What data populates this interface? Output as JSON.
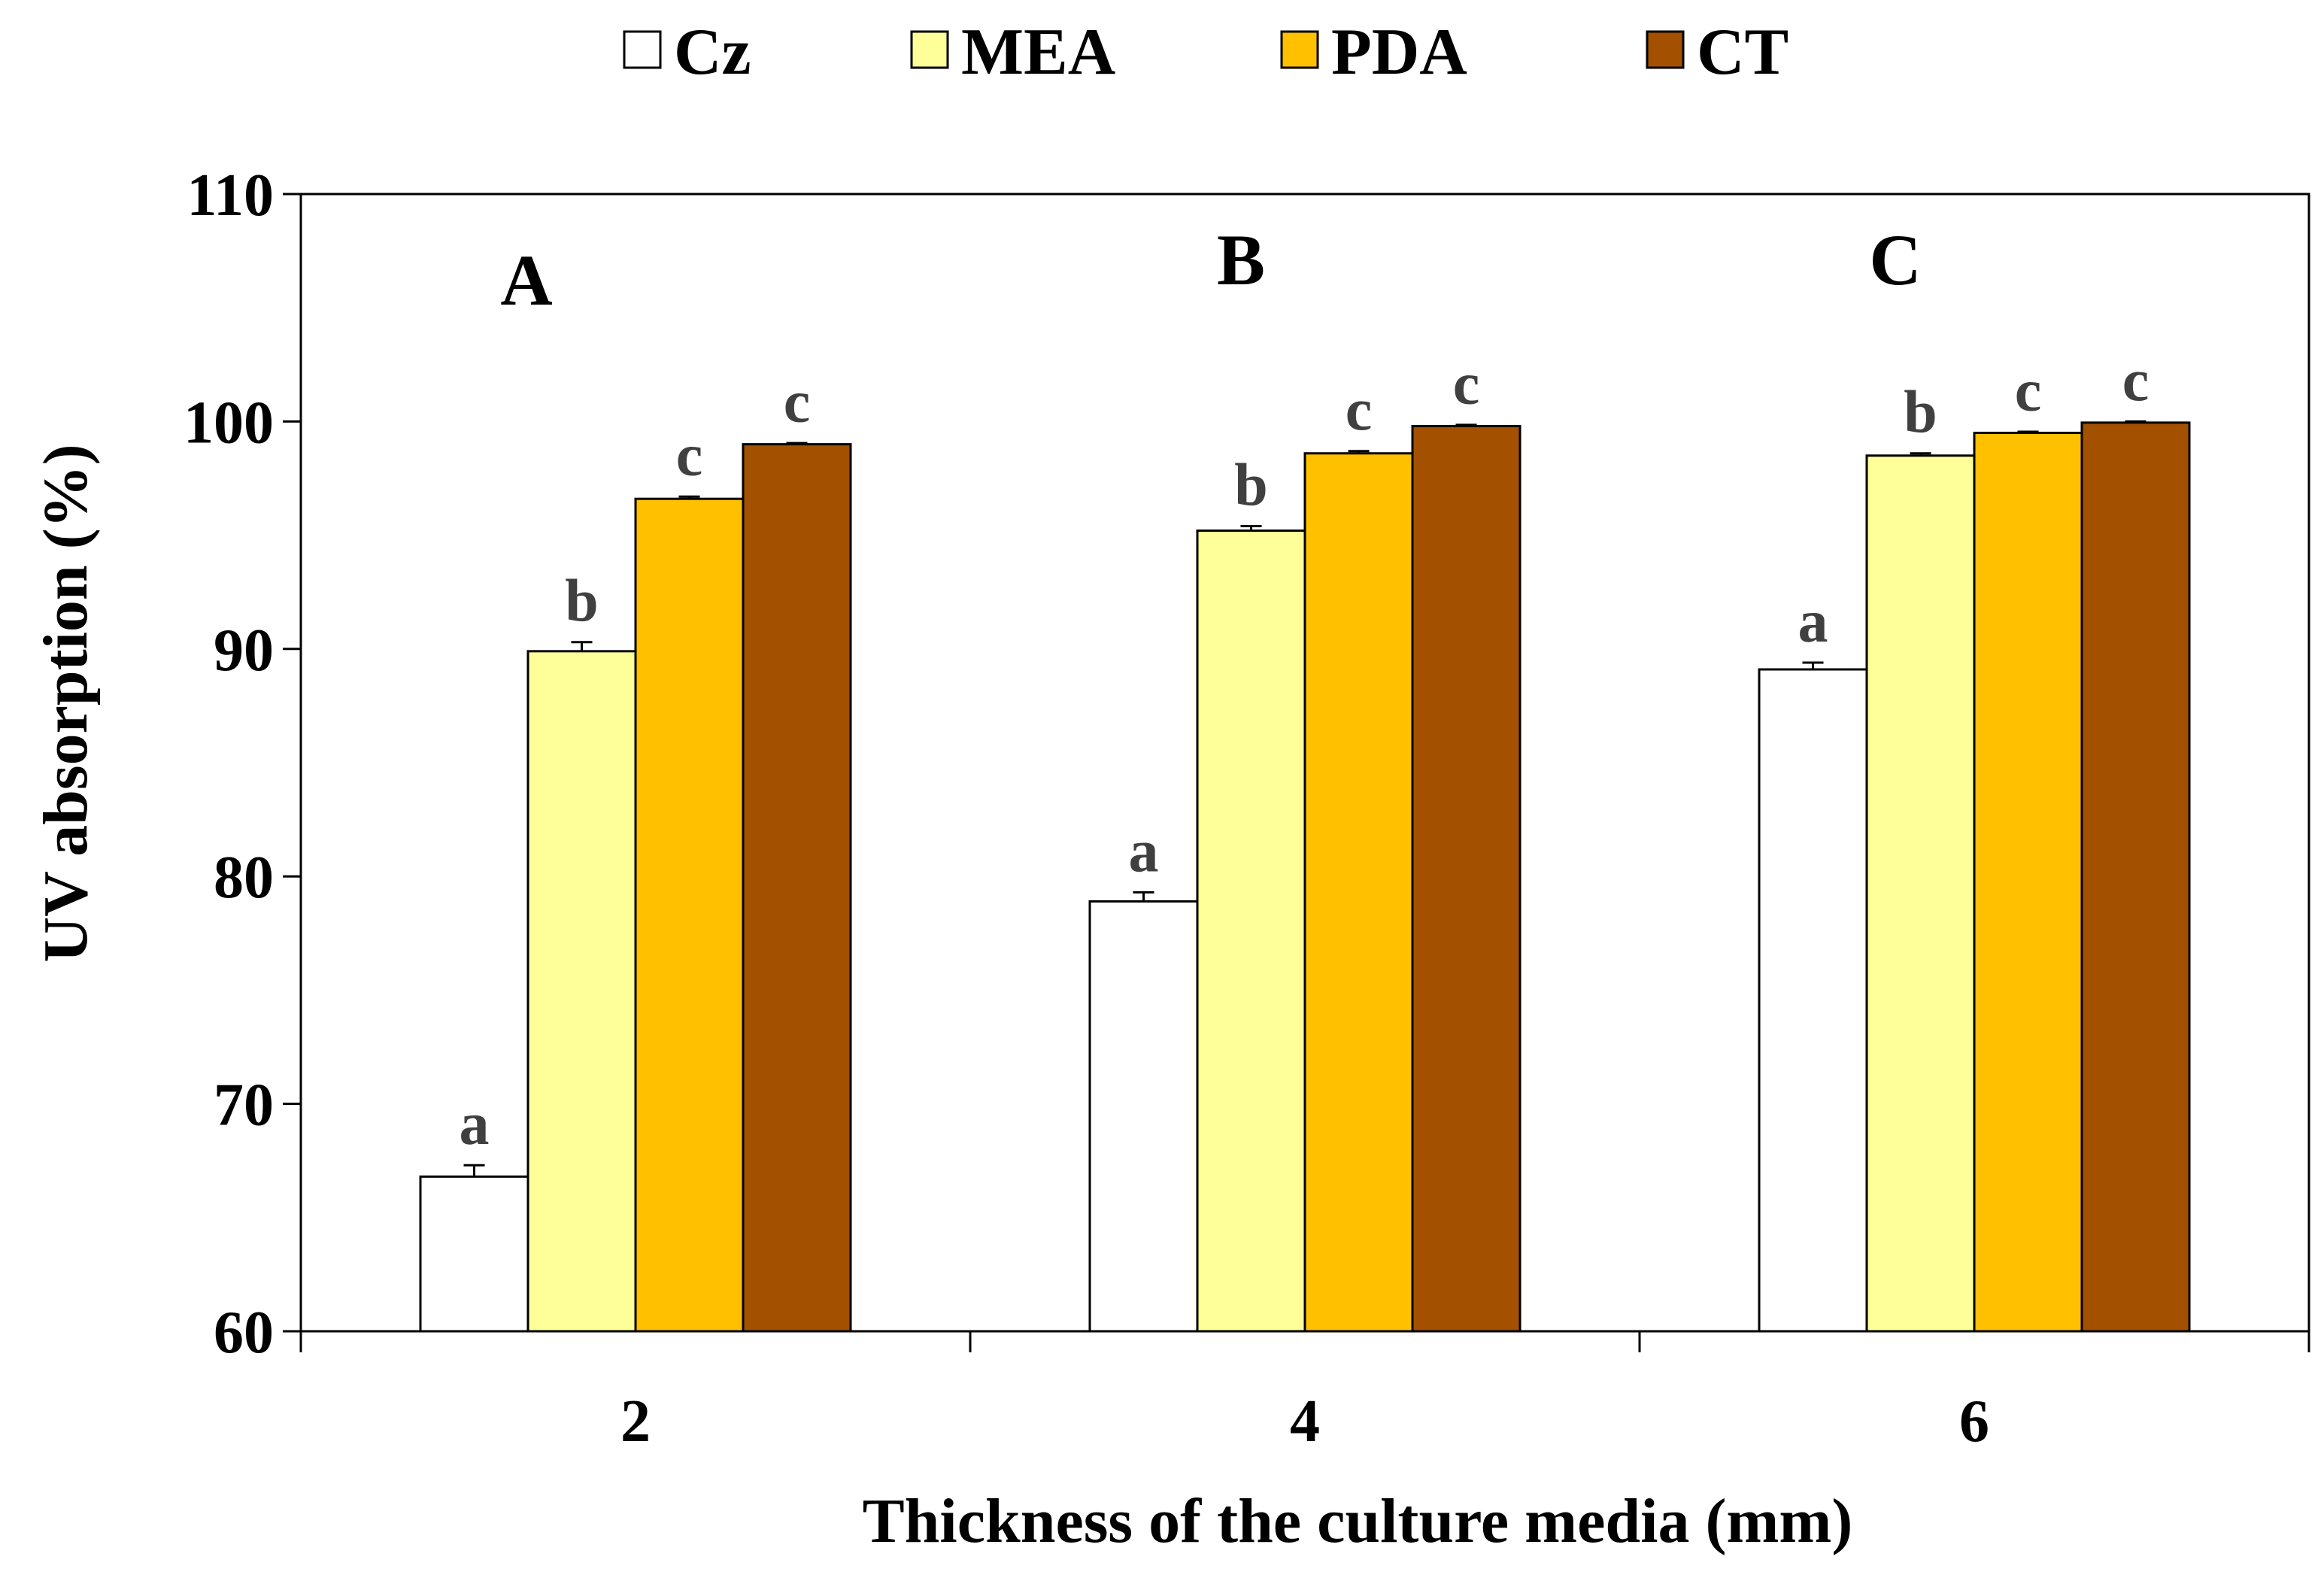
{
  "chart_data": {
    "type": "bar",
    "title": "",
    "xlabel": "Thickness of the culture media (mm)",
    "ylabel": "UV absorption (%)",
    "ylim": [
      60,
      110
    ],
    "yticks": [
      60,
      70,
      80,
      90,
      100,
      110
    ],
    "categories": [
      "2",
      "4",
      "6"
    ],
    "panel_labels": [
      "A",
      "B",
      "C"
    ],
    "legend_position": "top",
    "grid": false,
    "series": [
      {
        "name": "Cz",
        "color": "#ffffff",
        "values": [
          66.8,
          78.9,
          89.1
        ],
        "errors": [
          0.5,
          0.4,
          0.3
        ],
        "significance": [
          "a",
          "a",
          "a"
        ]
      },
      {
        "name": "MEA",
        "color": "#ffff99",
        "values": [
          89.9,
          95.2,
          98.5
        ],
        "errors": [
          0.4,
          0.2,
          0.1
        ],
        "significance": [
          "b",
          "b",
          "b"
        ]
      },
      {
        "name": "PDA",
        "color": "#ffc000",
        "values": [
          96.6,
          98.6,
          99.5
        ],
        "errors": [
          0.1,
          0.1,
          0.05
        ],
        "significance": [
          "c",
          "c",
          "c"
        ]
      },
      {
        "name": "CT",
        "color": "#a35100",
        "values": [
          99.0,
          99.8,
          99.95
        ],
        "errors": [
          0.05,
          0.05,
          0.05
        ],
        "significance": [
          "c",
          "c",
          "c"
        ]
      }
    ]
  }
}
